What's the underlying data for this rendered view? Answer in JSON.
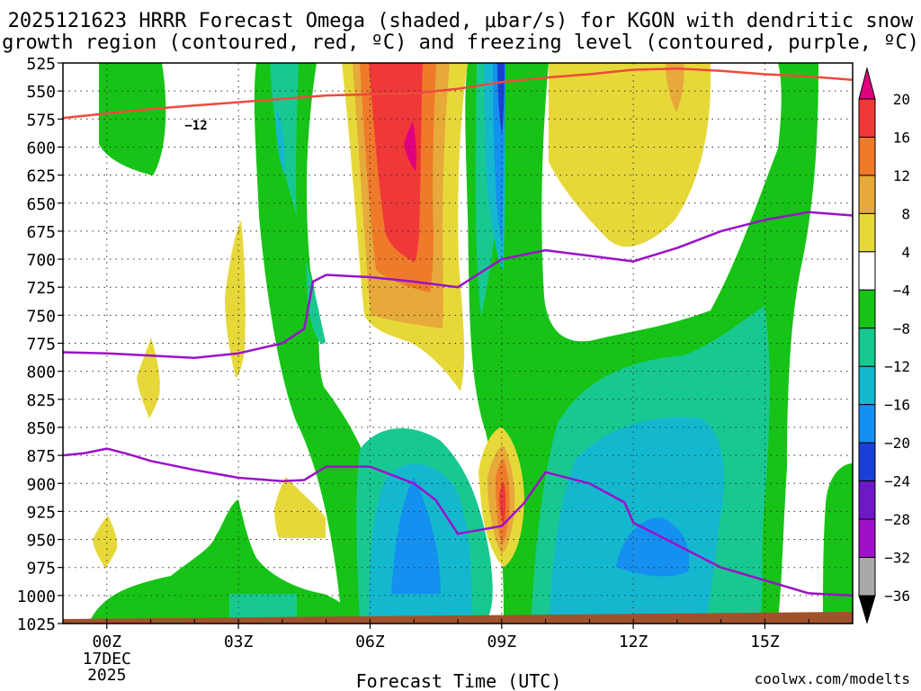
{
  "chart_data": {
    "type": "heatmap",
    "title_line1": "2025121623 HRRR Forecast Omega (shaded, μbar/s) for KGON with dendritic snow",
    "title_line2": "growth region (contoured, red, ºC) and freezing level (contoured, purple, ºC)",
    "xlabel": "Forecast Time (UTC)",
    "x_ticks": [
      {
        "hour": 0,
        "label": "00Z",
        "sub1": "17DEC",
        "sub2": "2025"
      },
      {
        "hour": 3,
        "label": "03Z"
      },
      {
        "hour": 6,
        "label": "06Z"
      },
      {
        "hour": 9,
        "label": "09Z"
      },
      {
        "hour": 12,
        "label": "12Z"
      },
      {
        "hour": 15,
        "label": "15Z"
      }
    ],
    "xlim": [
      -1,
      17
    ],
    "ylabel": "Pressure (hPa)",
    "y_ticks": [
      525,
      550,
      575,
      600,
      625,
      650,
      675,
      700,
      725,
      750,
      775,
      800,
      825,
      850,
      875,
      900,
      925,
      950,
      975,
      1000,
      1025
    ],
    "ylim": [
      1025,
      525
    ],
    "colorbar": {
      "labels": [
        "20",
        "16",
        "12",
        "8",
        "4",
        "−4",
        "−8",
        "−12",
        "−16",
        "−20",
        "−24",
        "−28",
        "−32",
        "−36"
      ],
      "colors": [
        "#e0007e",
        "#f03838",
        "#ef7a2a",
        "#e6a93a",
        "#e7d83a",
        "#ffffff",
        "#16c316",
        "#17c990",
        "#13b8cf",
        "#1490f0",
        "#1a3fd6",
        "#6e18c6",
        "#a010c8",
        "#a9a9a9",
        "#000000"
      ]
    },
    "contours": [
      {
        "name": "-12C dendritic growth level",
        "color": "#ef4a3c",
        "label": "−12",
        "x": [
          -1,
          0,
          1,
          2,
          3,
          4,
          5,
          6,
          7,
          8,
          9,
          10,
          11,
          12,
          13,
          14,
          15,
          16,
          17
        ],
        "y": [
          574,
          570,
          566,
          563,
          560,
          557,
          554,
          553,
          552,
          548,
          542,
          538,
          535,
          531,
          530,
          532,
          535,
          537,
          540
        ]
      },
      {
        "name": "0C freezing level (upper)",
        "color": "#9a12c9",
        "x": [
          -1,
          0,
          1,
          2,
          3,
          4,
          4.5,
          4.7,
          5,
          6,
          7,
          8,
          9,
          10,
          11,
          12,
          13,
          14,
          15,
          16,
          17
        ],
        "y": [
          783,
          784,
          786,
          788,
          784,
          775,
          762,
          720,
          714,
          716,
          720,
          725,
          700,
          692,
          697,
          702,
          690,
          675,
          665,
          658,
          661
        ]
      },
      {
        "name": "0C freezing level (lower)",
        "color": "#9a12c9",
        "x": [
          -1,
          -0.5,
          0,
          0.5,
          1,
          2,
          3,
          4,
          4.5,
          5,
          6,
          7,
          7.5,
          8,
          9,
          9.5,
          10,
          11,
          11.8,
          12,
          12.5,
          14,
          16,
          17
        ],
        "y": [
          875,
          873,
          869,
          874,
          880,
          888,
          895,
          898,
          897,
          885,
          885,
          900,
          915,
          945,
          938,
          918,
          890,
          900,
          917,
          935,
          945,
          975,
          998,
          1000
        ]
      }
    ]
  },
  "footer": {
    "credit": "coolwx.com/modelts"
  }
}
